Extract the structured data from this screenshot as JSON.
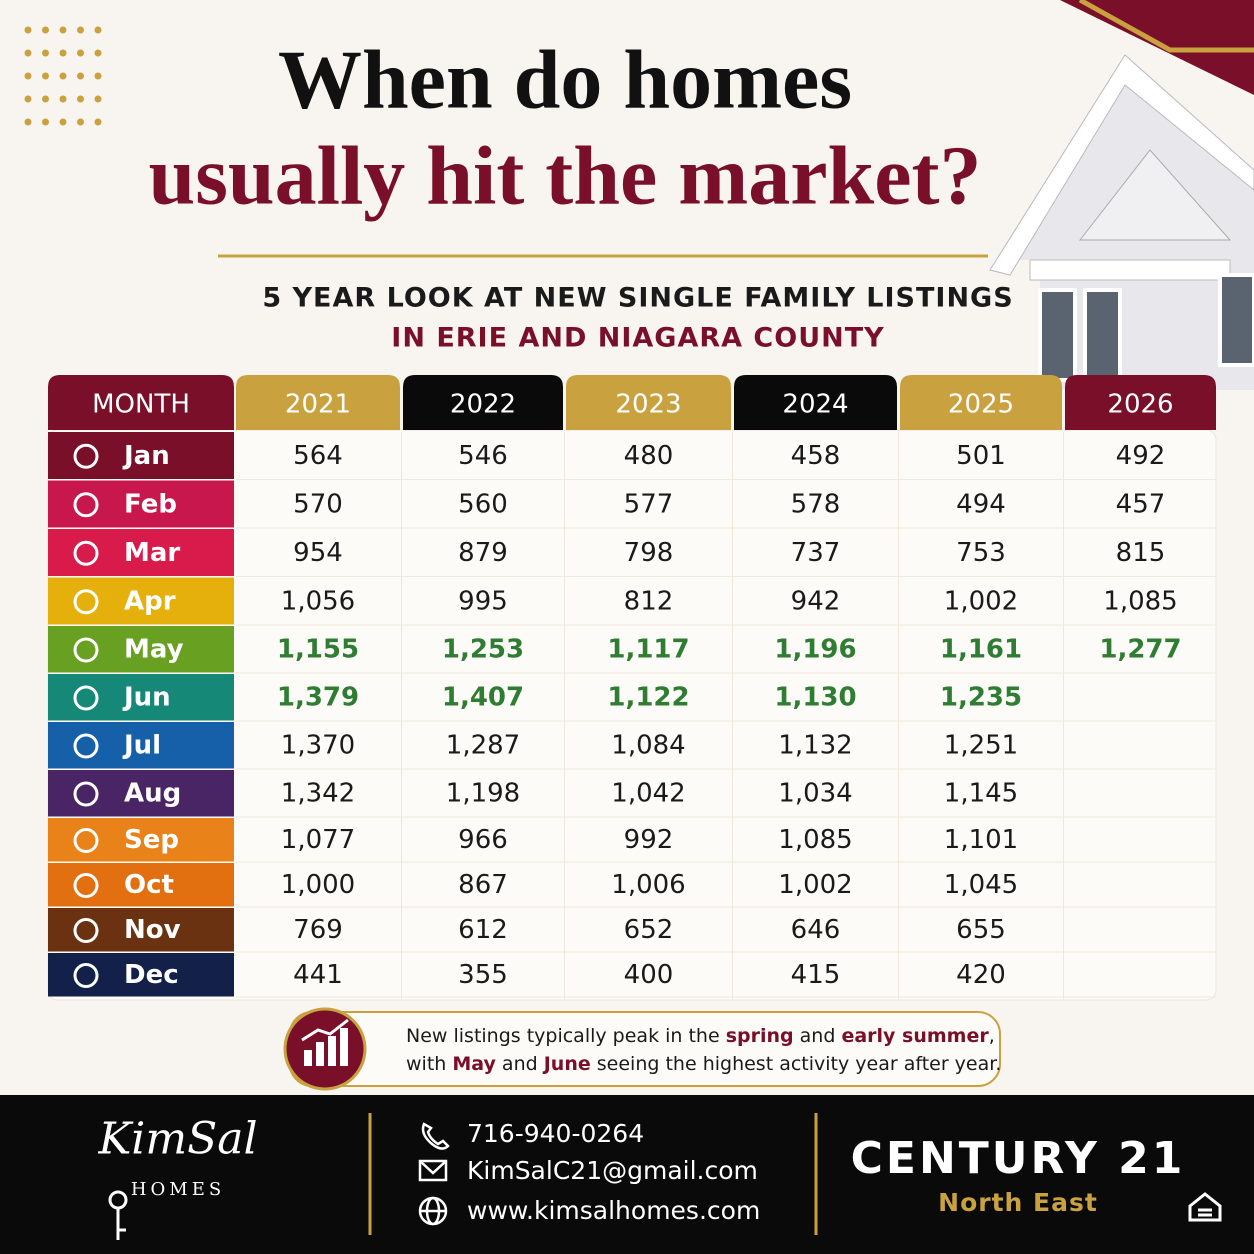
{
  "header": {
    "title_line1": "When do homes",
    "title_line2": "usually hit the market?",
    "subtitle_line1": "5 YEAR LOOK AT NEW SINGLE FAMILY LISTINGS",
    "subtitle_line2": "IN ERIE AND NIAGARA COUNTY"
  },
  "table": {
    "columns": [
      {
        "label": "MONTH",
        "color": "#7a0f2a"
      },
      {
        "label": "2021",
        "color": "#c9a23f"
      },
      {
        "label": "2022",
        "color": "#0a0a0a"
      },
      {
        "label": "2023",
        "color": "#c9a23f"
      },
      {
        "label": "2024",
        "color": "#0a0a0a"
      },
      {
        "label": "2025",
        "color": "#c9a23f"
      },
      {
        "label": "2026",
        "color": "#7a0f2a"
      }
    ],
    "rows": [
      {
        "month": "Jan",
        "color": "#7a0f2a",
        "highlight": false,
        "values": [
          "564",
          "546",
          "480",
          "458",
          "501",
          "492"
        ]
      },
      {
        "month": "Feb",
        "color": "#c8174d",
        "highlight": false,
        "values": [
          "570",
          "560",
          "577",
          "578",
          "494",
          "457"
        ]
      },
      {
        "month": "Mar",
        "color": "#d81b4a",
        "highlight": false,
        "values": [
          "954",
          "879",
          "798",
          "737",
          "753",
          "815"
        ]
      },
      {
        "month": "Apr",
        "color": "#e6b00c",
        "highlight": false,
        "values": [
          "1,056",
          "995",
          "812",
          "942",
          "1,002",
          "1,085"
        ]
      },
      {
        "month": "May",
        "color": "#68a021",
        "highlight": true,
        "values": [
          "1,155",
          "1,253",
          "1,117",
          "1,196",
          "1,161",
          "1,277"
        ]
      },
      {
        "month": "Jun",
        "color": "#168878",
        "highlight": true,
        "values": [
          "1,379",
          "1,407",
          "1,122",
          "1,130",
          "1,235"
        ]
      },
      {
        "month": "Jul",
        "color": "#1560a8",
        "highlight": false,
        "values": [
          "1,370",
          "1,287",
          "1,084",
          "1,132",
          "1,251"
        ]
      },
      {
        "month": "Aug",
        "color": "#4a2565",
        "highlight": false,
        "values": [
          "1,342",
          "1,198",
          "1,042",
          "1,034",
          "1,145"
        ]
      },
      {
        "month": "Sep",
        "color": "#ea821a",
        "highlight": false,
        "values": [
          "1,077",
          "966",
          "992",
          "1,085",
          "1,101"
        ]
      },
      {
        "month": "Oct",
        "color": "#e27010",
        "highlight": false,
        "values": [
          "1,000",
          "867",
          "1,006",
          "1,002",
          "1,045"
        ]
      },
      {
        "month": "Nov",
        "color": "#6a3210",
        "highlight": false,
        "values": [
          "769",
          "612",
          "652",
          "646",
          "655"
        ]
      },
      {
        "month": "Dec",
        "color": "#12204a",
        "highlight": false,
        "values": [
          "441",
          "355",
          "400",
          "415",
          "420"
        ]
      }
    ]
  },
  "callout": {
    "lines": [
      [
        {
          "text": "New listings typically peak in the ",
          "emphasis": false
        },
        {
          "text": "spring",
          "emphasis": true
        },
        {
          "text": " and ",
          "emphasis": false
        },
        {
          "text": "early summer",
          "emphasis": true
        },
        {
          "text": ",",
          "emphasis": false
        }
      ],
      [
        {
          "text": "with ",
          "emphasis": false
        },
        {
          "text": "May",
          "emphasis": true
        },
        {
          "text": " and ",
          "emphasis": false
        },
        {
          "text": "June",
          "emphasis": true
        },
        {
          "text": " seeing the highest activity year after year.",
          "emphasis": false
        }
      ]
    ]
  },
  "footer": {
    "logo": "KimSal",
    "logo_sub": "HOMES",
    "phone": "716-940-0264",
    "email": "KimSalC21@gmail.com",
    "website": "www.kimsalhomes.com",
    "brand": "CENTURY 21",
    "brand_sub": "North East"
  }
}
